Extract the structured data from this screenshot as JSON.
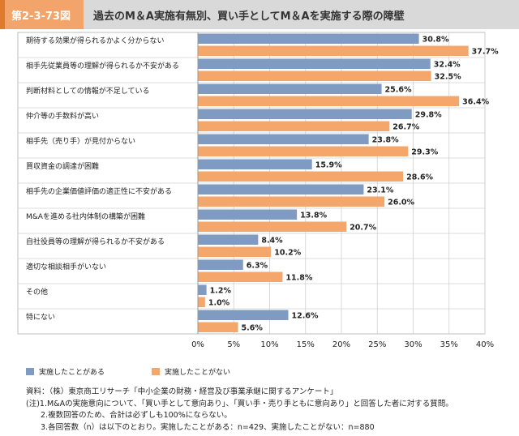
{
  "header": {
    "figure_number": "第2-3-73図",
    "title": "過去のM＆A実施有無別、買い手としてM＆Aを実施する際の障壁"
  },
  "colors": {
    "series1": "#7f9bc2",
    "series2": "#f4a66b"
  },
  "chart_data": {
    "type": "bar",
    "orientation": "horizontal",
    "categories": [
      "期待する効果が得られるかよく分からない",
      "相手先従業員等の理解が得られるか不安がある",
      "判断材料としての情報が不足している",
      "仲介等の手数料が高い",
      "相手先（売り手）が見付からない",
      "買収資金の調達が困難",
      "相手先の企業価値評価の適正性に不安がある",
      "M&Aを進める社内体制の構築が困難",
      "自社役員等の理解が得られるか不安がある",
      "適切な相談相手がいない",
      "その他",
      "特にない"
    ],
    "series": [
      {
        "name": "実施したことがある",
        "values": [
          30.8,
          32.4,
          25.6,
          29.8,
          23.8,
          15.9,
          23.1,
          13.8,
          8.4,
          6.3,
          1.2,
          12.6
        ]
      },
      {
        "name": "実施したことがない",
        "values": [
          37.7,
          32.5,
          36.4,
          26.7,
          29.3,
          28.6,
          26.0,
          20.7,
          10.2,
          11.8,
          1.0,
          5.6
        ]
      }
    ],
    "value_labels": [
      [
        "30.8%",
        "32.4%",
        "25.6%",
        "29.8%",
        "23.8%",
        "15.9%",
        "23.1%",
        "13.8%",
        "8.4%",
        "6.3%",
        "1.2%",
        "12.6%"
      ],
      [
        "37.7%",
        "32.5%",
        "36.4%",
        "26.7%",
        "29.3%",
        "28.6%",
        "26.0%",
        "20.7%",
        "10.2%",
        "11.8%",
        "1.0%",
        "5.6%"
      ]
    ],
    "xlim": [
      0,
      40
    ],
    "xticks": [
      0,
      5,
      10,
      15,
      20,
      25,
      30,
      35,
      40
    ],
    "xtick_labels": [
      "0%",
      "5%",
      "10%",
      "15%",
      "20%",
      "25%",
      "30%",
      "35%",
      "40%"
    ],
    "grid": true,
    "legend_position": "bottom-left"
  },
  "legend": {
    "item1": "実施したことがある",
    "item2": "実施したことがない"
  },
  "notes": [
    "資料：（株）東京商工リサーチ「中小企業の財務・経営及び事業承継に関するアンケート」",
    "(注)1.M&Aの実施意向について、「買い手として意向あり」、「買い手・売り手ともに意向あり」と回答した者に対する質問。",
    "2.複数回答のため、合計は必ずしも100%にならない。",
    "3.各回答数（n）は以下のとおり。実施したことがある：n=429、実施したことがない：n=880"
  ]
}
